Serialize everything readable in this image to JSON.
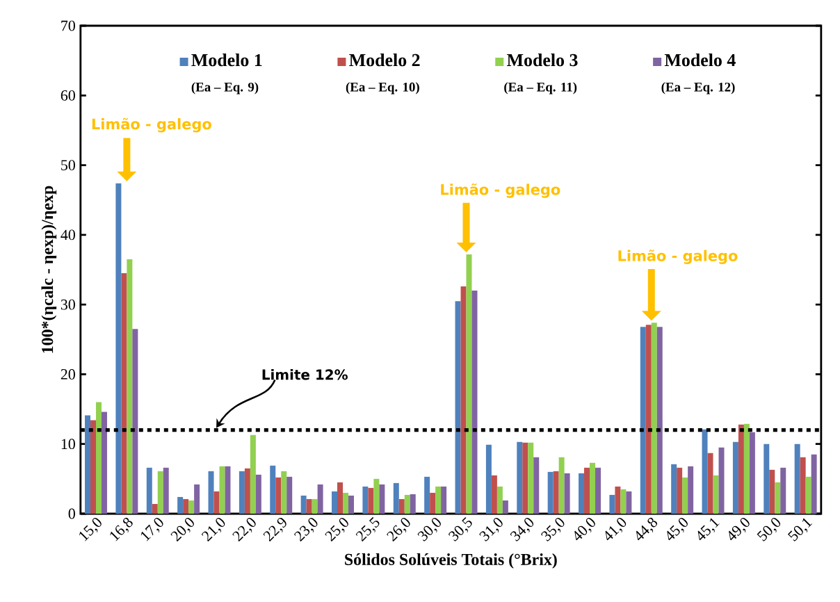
{
  "chart_data": {
    "type": "bar",
    "xlabel": "Sólidos Solúveis Totais (°Brix)",
    "ylabel": "100*(ηcalc - ηexp)/ηexp",
    "categories": [
      "15,0",
      "16,8",
      "17,0",
      "20,0",
      "21,0",
      "22,0",
      "22,9",
      "23,0",
      "25,0",
      "25,5",
      "26,0",
      "30,0",
      "30,5",
      "31,0",
      "34,0",
      "35,0",
      "40,0",
      "41,0",
      "44,8",
      "45,0",
      "45,1",
      "49,0",
      "50,0",
      "50,1"
    ],
    "series": [
      {
        "name": "Modelo 1",
        "color": "#4f81bd",
        "values": [
          14.1,
          47.4,
          6.6,
          2.4,
          6.1,
          6.1,
          6.9,
          2.6,
          3.2,
          3.9,
          4.4,
          5.3,
          30.5,
          9.9,
          10.3,
          6.0,
          5.8,
          2.7,
          26.8,
          7.1,
          12.1,
          10.3,
          10.0,
          10.0
        ]
      },
      {
        "name": "Modelo 2",
        "color": "#c0504d",
        "values": [
          13.4,
          34.5,
          1.4,
          2.1,
          3.2,
          6.5,
          5.2,
          2.1,
          4.5,
          3.7,
          2.1,
          3.0,
          32.6,
          5.5,
          10.2,
          6.1,
          6.6,
          3.9,
          27.1,
          6.6,
          8.7,
          12.8,
          6.3,
          8.1
        ]
      },
      {
        "name": "Modelo 3",
        "color": "#92d050",
        "values": [
          16.0,
          36.5,
          6.1,
          1.9,
          6.8,
          11.3,
          6.1,
          2.1,
          3.0,
          5.0,
          2.7,
          3.9,
          37.2,
          3.9,
          10.2,
          8.1,
          7.3,
          3.5,
          27.4,
          5.2,
          5.5,
          12.9,
          4.5,
          5.3
        ]
      },
      {
        "name": "Modelo 4",
        "color": "#8064a2",
        "values": [
          14.6,
          26.5,
          6.6,
          4.2,
          6.8,
          5.6,
          5.3,
          4.2,
          2.6,
          4.2,
          2.8,
          3.9,
          32.0,
          1.9,
          8.1,
          5.8,
          6.6,
          3.2,
          26.8,
          6.8,
          9.5,
          11.7,
          6.6,
          8.5
        ]
      }
    ],
    "ylim": [
      0,
      70
    ],
    "yticks": [
      0,
      10,
      20,
      30,
      40,
      50,
      60,
      70
    ],
    "grid": false,
    "legend": "top",
    "ref_lines": [
      {
        "axis": "y",
        "value": 12,
        "color": "#000000",
        "line_style": "dotted"
      }
    ],
    "annotations": [
      "(Ea – Eq. 9)",
      "(Ea – Eq. 10)",
      "(Ea – Eq. 11)",
      "(Ea – Eq. 12)",
      "Limite 12%",
      "Limão - galego",
      "Limão - galego",
      "Limão - galego"
    ]
  }
}
